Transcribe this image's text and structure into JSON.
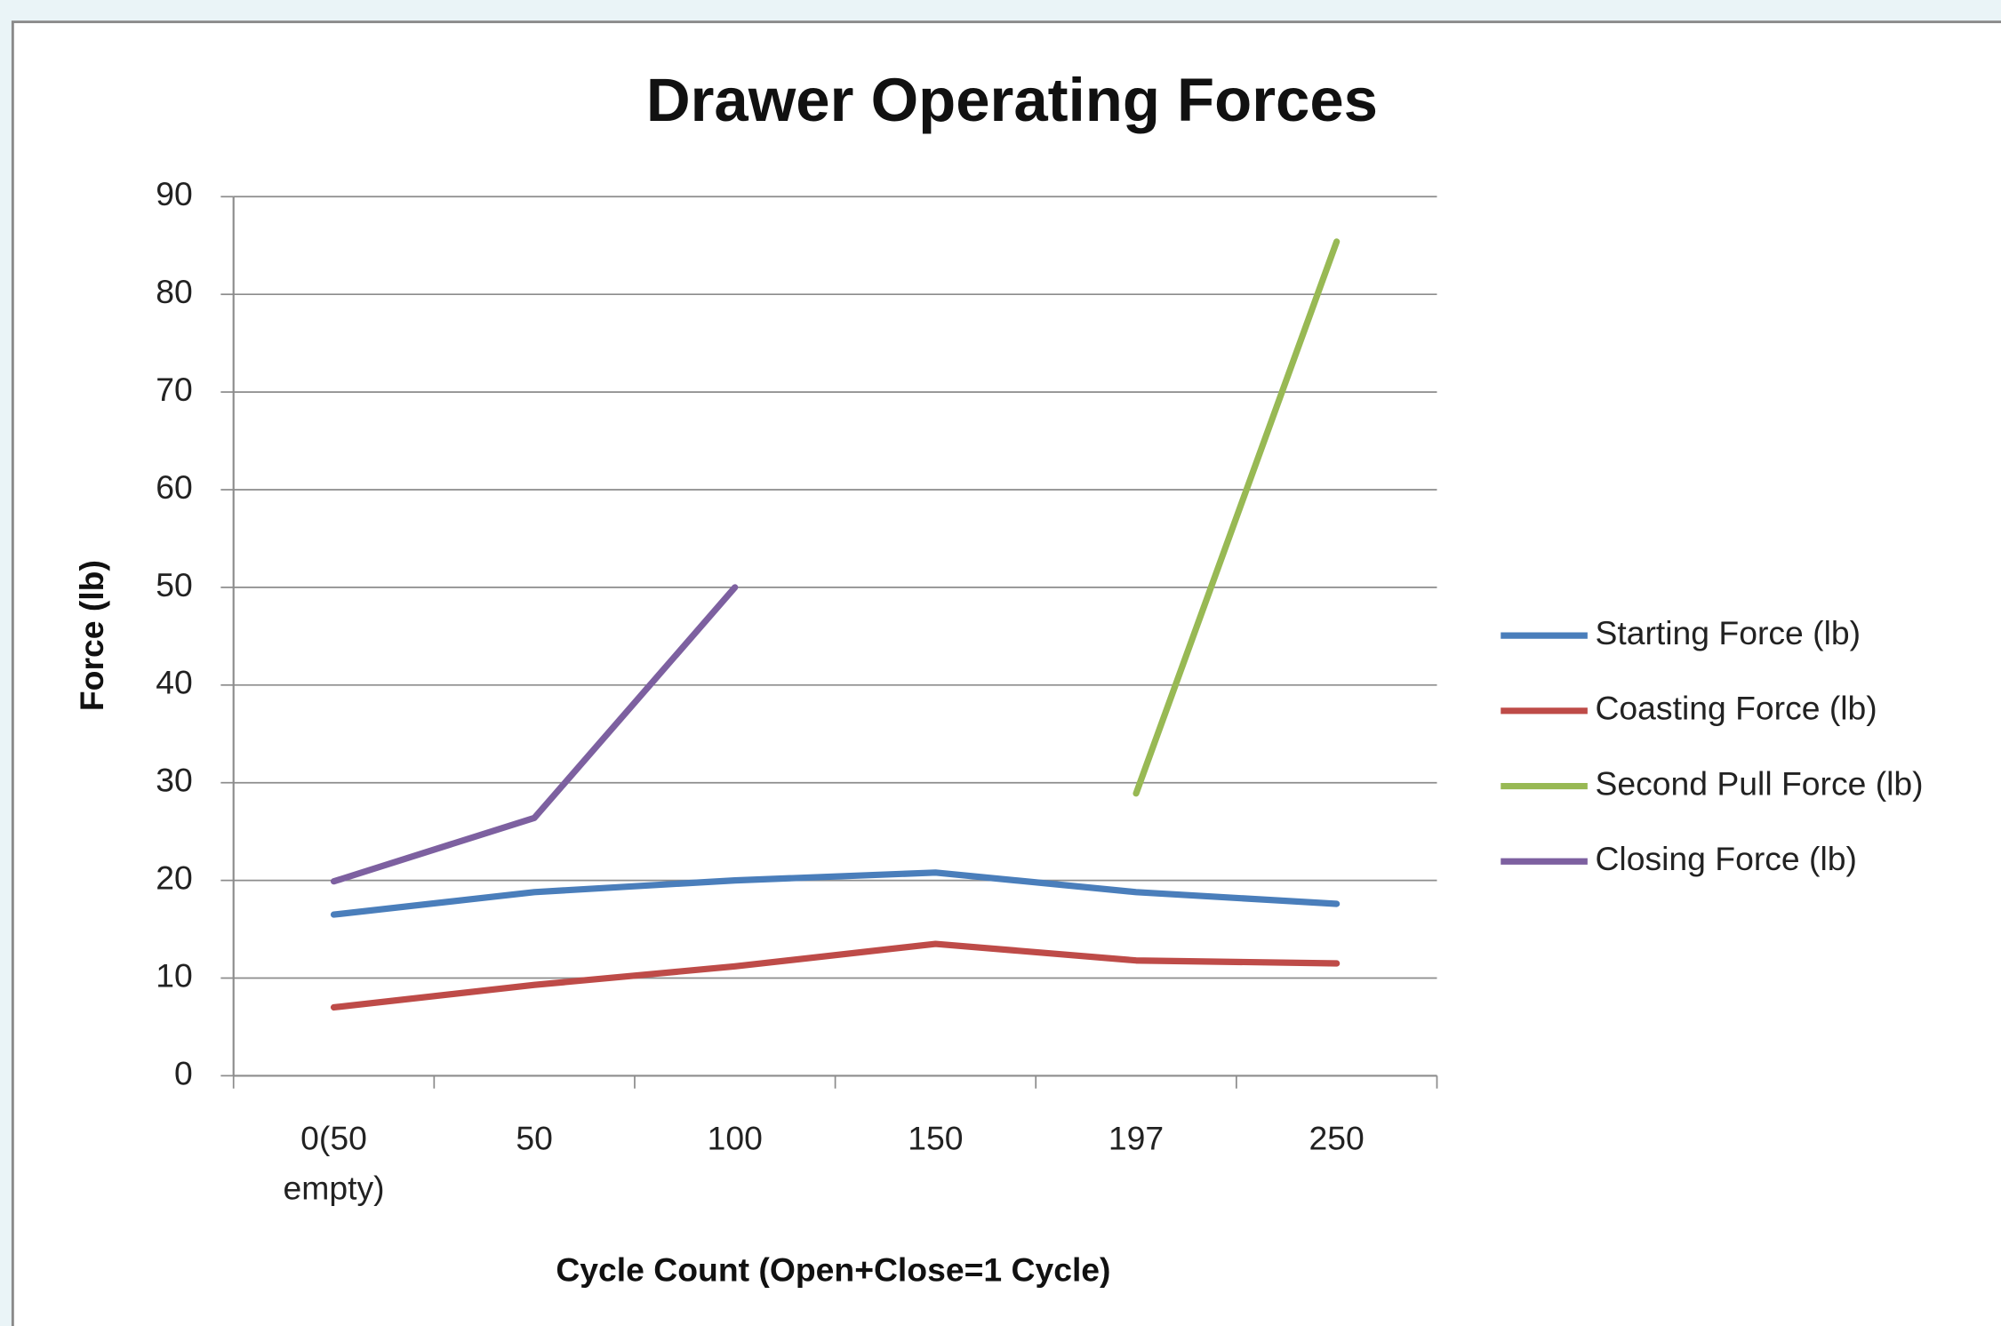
{
  "chart_data": {
    "type": "line",
    "title": "Drawer Operating Forces",
    "x_label": "Cycle Count (Open+Close=1 Cycle)",
    "y_label": "Force (lb)",
    "categories": [
      "0(50 empty)",
      "50",
      "100",
      "150",
      "197",
      "250"
    ],
    "series": [
      {
        "name": "Starting Force (lb)",
        "color": "#4a7ebb",
        "values": [
          16.5,
          18.8,
          20,
          20.8,
          18.8,
          17.6
        ]
      },
      {
        "name": "Coasting Force (lb)",
        "color": "#be4b48",
        "values": [
          7,
          9.3,
          11.2,
          13.5,
          11.8,
          11.5
        ]
      },
      {
        "name": "Second Pull Force (lb)",
        "color": "#98b954",
        "values": [
          null,
          null,
          null,
          null,
          28.9,
          85.4
        ]
      },
      {
        "name": "Closing Force (lb)",
        "color": "#7d60a0",
        "values": [
          19.9,
          26.4,
          50,
          null,
          null,
          null
        ]
      }
    ],
    "ylim": [
      0,
      90
    ],
    "yticks": [
      0,
      10,
      20,
      30,
      40,
      50,
      60,
      70,
      80,
      90
    ],
    "grid": true,
    "legend": "right"
  }
}
